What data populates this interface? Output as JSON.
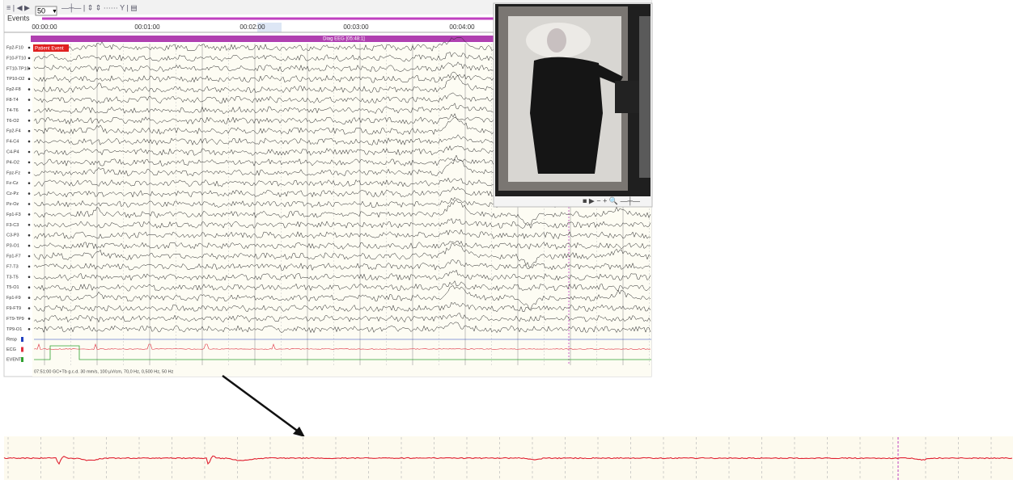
{
  "toolbar": {
    "page_size": "50"
  },
  "events_label": "Events",
  "timeline": {
    "labels": [
      "00:00:00",
      "00:01:00",
      "00:02:00",
      "00:03:00",
      "00:04:00"
    ]
  },
  "event_marker": "Patient Event",
  "annotation_bar": "Diag EEG [05:48:1]",
  "channels": [
    "Fp2-F10",
    "F10-FT10",
    "FT10-TP10",
    "TP10-O2",
    "Fp2-F8",
    "F8-T4",
    "T4-T6",
    "T6-O2",
    "Fp2-F4",
    "F4-C4",
    "C4-P4",
    "P4-O2",
    "Fpz-Fz",
    "Fz-Cz",
    "Cz-Pz",
    "Pz-Oz",
    "Fp1-F3",
    "F3-C3",
    "C3-P3",
    "P3-O1",
    "Fp1-F7",
    "F7-T3",
    "T3-T5",
    "T5-O1",
    "Fp1-F9",
    "F9-FT9",
    "FT9-TP9",
    "TP9-O1"
  ],
  "aux_channels": [
    "Resp",
    "ECG",
    "EVENT"
  ],
  "status": "07:51:00 GC+Tb g.c.d. 30 mm/s, 100 µV/cm, 70,0 Hz, 0,500 Hz, 50 Hz"
}
